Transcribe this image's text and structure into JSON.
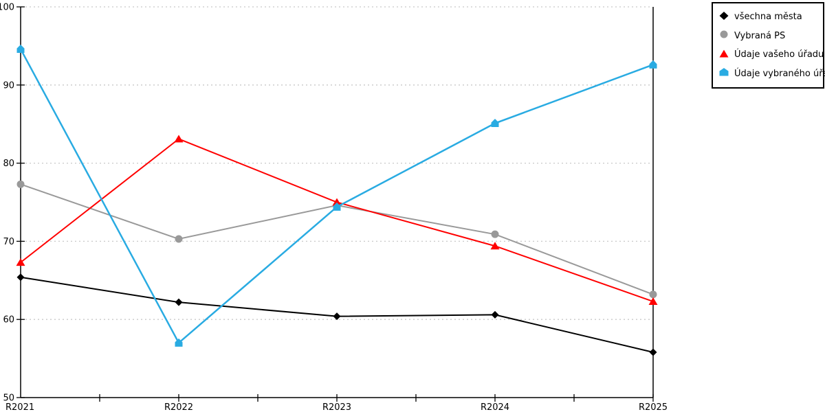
{
  "chart_data": {
    "type": "line",
    "x_categories": [
      "R2021",
      "R2022",
      "R2023",
      "R2024",
      "R2025"
    ],
    "series": [
      {
        "name": "všechna města",
        "color": "#000000",
        "marker": "diamond",
        "values": [
          65.4,
          62.2,
          60.4,
          60.6,
          55.8
        ]
      },
      {
        "name": "Vybraná PS",
        "color": "#999999",
        "marker": "circle",
        "values": [
          77.3,
          70.3,
          74.6,
          70.9,
          63.2
        ]
      },
      {
        "name": "Údaje vašeho úřadu",
        "color": "#ff0000",
        "marker": "triangle",
        "values": [
          67.3,
          83.1,
          75.0,
          69.4,
          62.3
        ]
      },
      {
        "name": "Údaje vybraného úřadu",
        "color": "#29abe2",
        "marker": "pentagon",
        "values": [
          94.6,
          57.0,
          74.4,
          85.1,
          92.6
        ]
      }
    ],
    "title": "",
    "xlabel": "",
    "ylabel": "",
    "ylim": [
      50,
      100
    ],
    "yticks": [
      50,
      60,
      70,
      80,
      90,
      100
    ],
    "grid": "horizontal-dotted",
    "gridline_color": "#c8c8c8",
    "axis_color": "#000000",
    "legend_position": "top-right"
  }
}
